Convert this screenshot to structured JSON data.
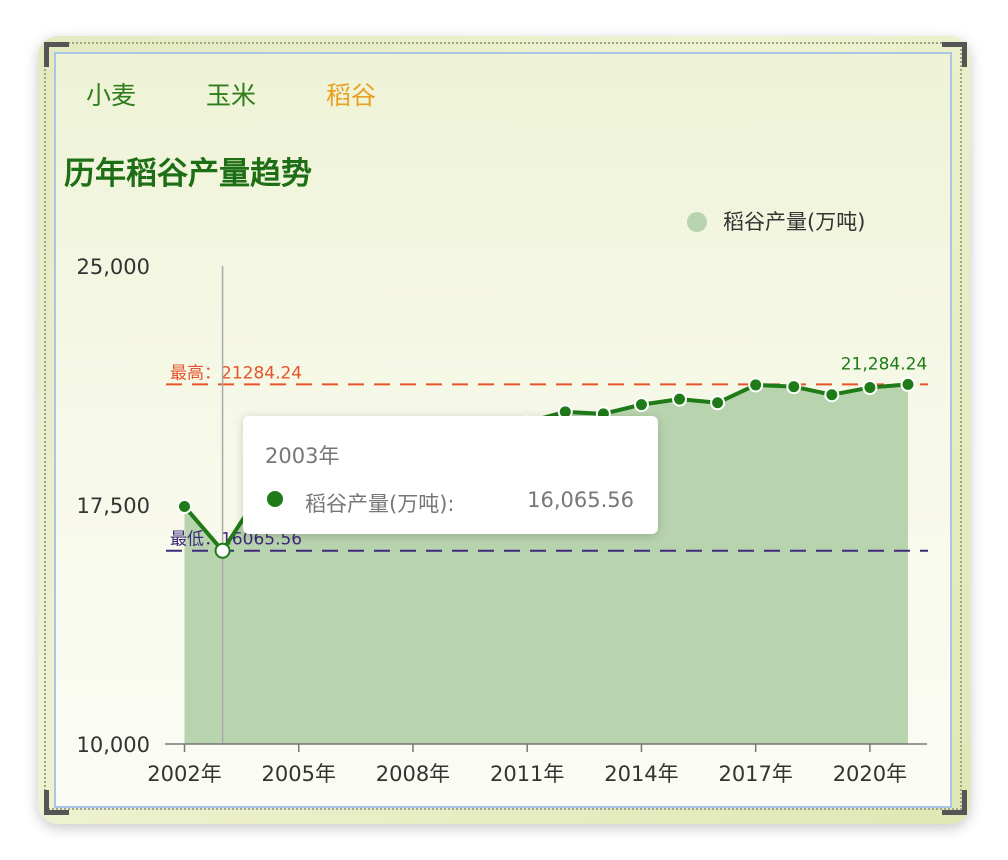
{
  "tabs": [
    {
      "label": "小麦",
      "active": false
    },
    {
      "label": "玉米",
      "active": false
    },
    {
      "label": "稻谷",
      "active": true
    }
  ],
  "colors": {
    "tab": "#2f7d1c",
    "tab_active": "#e8a020",
    "title": "#1d6e15",
    "line": "#1f7a18",
    "area": "#b8d4ae",
    "max_line": "#e8542a",
    "min_line": "#3d2a7a",
    "legend_dot": "#b8d4ae"
  },
  "tooltip": {
    "title": "2003年",
    "series_label": "稻谷产量(万吨):",
    "value": "16,065.56"
  },
  "chart_data": {
    "type": "area",
    "title": "历年稻谷产量趋势",
    "legend": "稻谷产量(万吨)",
    "legend_position": "top-right",
    "x": [
      2002,
      2003,
      2004,
      2005,
      2006,
      2007,
      2008,
      2009,
      2010,
      2011,
      2012,
      2013,
      2014,
      2015,
      2016,
      2017,
      2018,
      2019,
      2020,
      2021
    ],
    "x_tick_labels": [
      "2002年",
      "2005年",
      "2008年",
      "2011年",
      "2014年",
      "2017年",
      "2020年"
    ],
    "series": [
      {
        "name": "稻谷产量(万吨)",
        "values": [
          17454,
          16065.56,
          17909,
          18059,
          18172,
          18603,
          19190,
          19510,
          19576,
          20100,
          20424,
          20361,
          20651,
          20823,
          20708,
          21268,
          21213,
          20961,
          21186,
          21284.24
        ]
      }
    ],
    "ylim": [
      10000,
      25000
    ],
    "y_tick_labels": [
      "10,000",
      "17,500",
      "25,000"
    ],
    "y_ticks": [
      10000,
      17500,
      25000
    ],
    "max_mark": {
      "label": "最高：21284.24",
      "value": 21284.24
    },
    "min_mark": {
      "label": "最低：16065.56",
      "value": 16065.56
    },
    "last_point_label": "21,284.24",
    "highlight_index": 1,
    "grid": false
  }
}
